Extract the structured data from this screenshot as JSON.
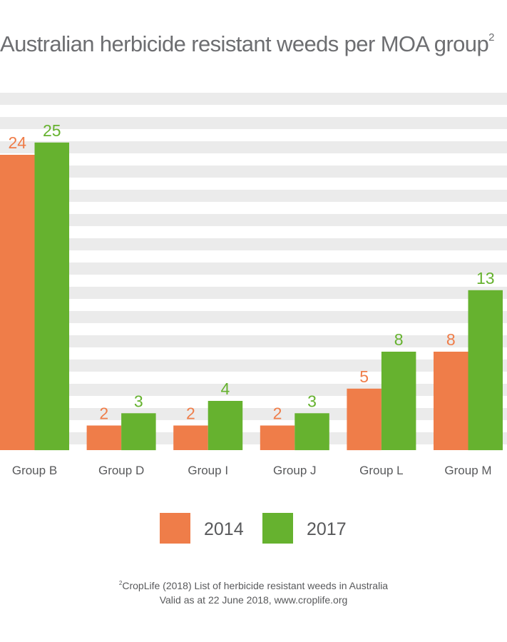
{
  "chart_data": {
    "type": "bar",
    "title": "Australian herbicide resistant weeds per MOA group",
    "title_superscript": "2",
    "categories": [
      "Group B",
      "Group D",
      "Group I",
      "Group J",
      "Group L",
      "Group M"
    ],
    "series": [
      {
        "name": "2014",
        "values": [
          24,
          2,
          2,
          2,
          5,
          8
        ],
        "color": "#ef7d49"
      },
      {
        "name": "2017",
        "values": [
          25,
          3,
          4,
          3,
          8,
          13
        ],
        "color": "#66b22f"
      }
    ],
    "ylim": [
      0,
      29
    ],
    "grid": true,
    "legend_position": "bottom-center",
    "xlabel": "",
    "ylabel": ""
  },
  "colors": {
    "title_text": "#6d6e71",
    "axis_text": "#58595b",
    "grid_band": "#ebebeb"
  },
  "footnote": {
    "marker": "2",
    "line1": "CropLife (2018) List of herbicide resistant weeds in Australia",
    "line2": "Valid as at 22 June 2018, www.croplife.org"
  }
}
